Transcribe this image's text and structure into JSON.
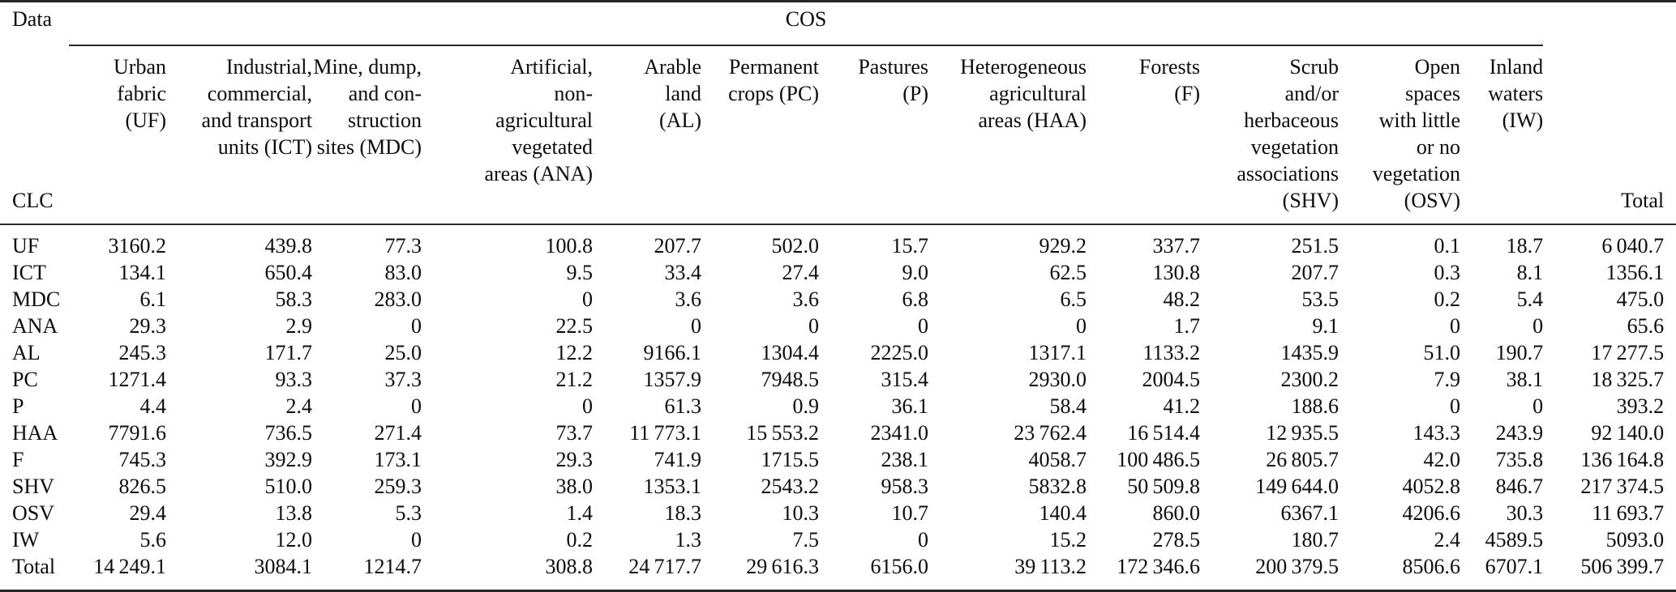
{
  "table": {
    "corner_top_label": "Data",
    "corner_bottom_label": "CLC",
    "group_header": "COS",
    "total_header": "Total",
    "rule_color": "#2b2b2b",
    "columns": [
      {
        "id": "UF",
        "header": "Urban\nfabric\n(UF)"
      },
      {
        "id": "ICT",
        "header": "Industrial,\ncommercial,\nand transport\nunits (ICT)"
      },
      {
        "id": "MDC",
        "header": "Mine, dump,\nand con-\nstruction\nsites (MDC)"
      },
      {
        "id": "ANA",
        "header": "Artificial,\nnon-\nagricultural\nvegetated\nareas (ANA)"
      },
      {
        "id": "AL",
        "header": "Arable\nland\n(AL)"
      },
      {
        "id": "PC",
        "header": "Permanent\ncrops (PC)"
      },
      {
        "id": "P",
        "header": "Pastures\n(P)"
      },
      {
        "id": "HAA",
        "header": "Heterogeneous\nagricultural\nareas (HAA)"
      },
      {
        "id": "F",
        "header": "Forests\n(F)"
      },
      {
        "id": "SHV",
        "header": "Scrub\nand/or\nherbaceous\nvegetation\nassociations\n(SHV)"
      },
      {
        "id": "OSV",
        "header": "Open\nspaces\nwith little\nor no\nvegetation\n(OSV)"
      },
      {
        "id": "IW",
        "header": "Inland\nwaters\n(IW)"
      }
    ],
    "rows": [
      {
        "id": "UF",
        "label": "UF",
        "values": [
          "3160.2",
          "439.8",
          "77.3",
          "100.8",
          "207.7",
          "502.0",
          "15.7",
          "929.2",
          "337.7",
          "251.5",
          "0.1",
          "18.7",
          "6 040.7"
        ]
      },
      {
        "id": "ICT",
        "label": "ICT",
        "values": [
          "134.1",
          "650.4",
          "83.0",
          "9.5",
          "33.4",
          "27.4",
          "9.0",
          "62.5",
          "130.8",
          "207.7",
          "0.3",
          "8.1",
          "1356.1"
        ]
      },
      {
        "id": "MDC",
        "label": "MDC",
        "values": [
          "6.1",
          "58.3",
          "283.0",
          "0",
          "3.6",
          "3.6",
          "6.8",
          "6.5",
          "48.2",
          "53.5",
          "0.2",
          "5.4",
          "475.0"
        ]
      },
      {
        "id": "ANA",
        "label": "ANA",
        "values": [
          "29.3",
          "2.9",
          "0",
          "22.5",
          "0",
          "0",
          "0",
          "0",
          "1.7",
          "9.1",
          "0",
          "0",
          "65.6"
        ]
      },
      {
        "id": "AL",
        "label": "AL",
        "values": [
          "245.3",
          "171.7",
          "25.0",
          "12.2",
          "9166.1",
          "1304.4",
          "2225.0",
          "1317.1",
          "1133.2",
          "1435.9",
          "51.0",
          "190.7",
          "17 277.5"
        ]
      },
      {
        "id": "PC",
        "label": "PC",
        "values": [
          "1271.4",
          "93.3",
          "37.3",
          "21.2",
          "1357.9",
          "7948.5",
          "315.4",
          "2930.0",
          "2004.5",
          "2300.2",
          "7.9",
          "38.1",
          "18 325.7"
        ]
      },
      {
        "id": "P",
        "label": "P",
        "values": [
          "4.4",
          "2.4",
          "0",
          "0",
          "61.3",
          "0.9",
          "36.1",
          "58.4",
          "41.2",
          "188.6",
          "0",
          "0",
          "393.2"
        ]
      },
      {
        "id": "HAA",
        "label": "HAA",
        "values": [
          "7791.6",
          "736.5",
          "271.4",
          "73.7",
          "11 773.1",
          "15 553.2",
          "2341.0",
          "23 762.4",
          "16 514.4",
          "12 935.5",
          "143.3",
          "243.9",
          "92 140.0"
        ]
      },
      {
        "id": "F",
        "label": "F",
        "values": [
          "745.3",
          "392.9",
          "173.1",
          "29.3",
          "741.9",
          "1715.5",
          "238.1",
          "4058.7",
          "100 486.5",
          "26 805.7",
          "42.0",
          "735.8",
          "136 164.8"
        ]
      },
      {
        "id": "SHV",
        "label": "SHV",
        "values": [
          "826.5",
          "510.0",
          "259.3",
          "38.0",
          "1353.1",
          "2543.2",
          "958.3",
          "5832.8",
          "50 509.8",
          "149 644.0",
          "4052.8",
          "846.7",
          "217 374.5"
        ]
      },
      {
        "id": "OSV",
        "label": "OSV",
        "values": [
          "29.4",
          "13.8",
          "5.3",
          "1.4",
          "18.3",
          "10.3",
          "10.7",
          "140.4",
          "860.0",
          "6367.1",
          "4206.6",
          "30.3",
          "11 693.7"
        ]
      },
      {
        "id": "IW",
        "label": "IW",
        "values": [
          "5.6",
          "12.0",
          "0",
          "0.2",
          "1.3",
          "7.5",
          "0",
          "15.2",
          "278.5",
          "180.7",
          "2.4",
          "4589.5",
          "5093.0"
        ]
      },
      {
        "id": "Total",
        "label": "Total",
        "values": [
          "14 249.1",
          "3084.1",
          "1214.7",
          "308.8",
          "24 717.7",
          "29 616.3",
          "6156.0",
          "39 113.2",
          "172 346.6",
          "200 379.5",
          "8506.6",
          "6707.1",
          "506 399.7"
        ]
      }
    ]
  }
}
